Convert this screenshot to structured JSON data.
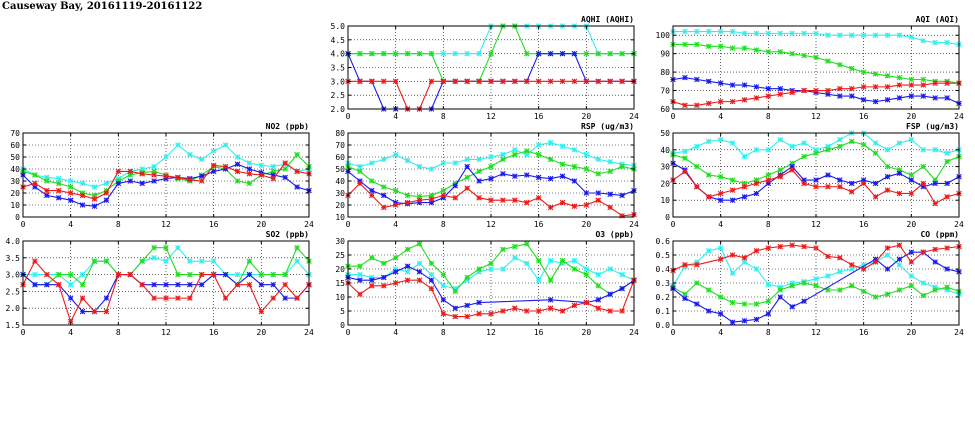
{
  "page_title": "Causeway Bay, 20161119-20161122",
  "colors": {
    "cyan": "#33eeee",
    "green": "#22dd22",
    "blue": "#1a1aee",
    "red": "#ee1a1a"
  },
  "chart_data": [
    {
      "id": "aqhi",
      "type": "line",
      "title": "AQHI (AQHI)",
      "xlim": [
        0,
        24
      ],
      "ylim": [
        2.0,
        5.0
      ],
      "grid": true,
      "x_ticks": [
        "0",
        "4",
        "8",
        "12",
        "16",
        "20",
        "24"
      ],
      "y_ticks": [
        "2.0",
        "2.5",
        "3.0",
        "3.5",
        "4.0",
        "4.5",
        "5.0"
      ],
      "series": [
        {
          "color": "cyan",
          "values": [
            4,
            4,
            4,
            4,
            4,
            4,
            4,
            4,
            4,
            4,
            4,
            4,
            5,
            5,
            5,
            5,
            5,
            5,
            5,
            5,
            5,
            4,
            4,
            4,
            4
          ]
        },
        {
          "color": "green",
          "values": [
            4,
            4,
            4,
            4,
            4,
            4,
            4,
            4,
            3,
            3,
            3,
            3,
            4,
            5,
            5,
            4,
            4,
            4,
            4,
            4,
            4,
            4,
            4,
            4,
            4
          ]
        },
        {
          "color": "blue",
          "values": [
            4,
            3,
            3,
            2,
            2,
            2,
            2,
            2,
            3,
            3,
            3,
            3,
            3,
            3,
            3,
            3,
            4,
            4,
            4,
            4,
            3,
            3,
            3,
            3,
            3
          ]
        },
        {
          "color": "red",
          "values": [
            3,
            3,
            3,
            3,
            3,
            2,
            2,
            3,
            3,
            3,
            3,
            3,
            3,
            3,
            3,
            3,
            3,
            3,
            3,
            3,
            3,
            3,
            3,
            3,
            3
          ]
        }
      ]
    },
    {
      "id": "aqi",
      "type": "line",
      "title": "AQI (AQI)",
      "xlim": [
        0,
        24
      ],
      "ylim": [
        60,
        105
      ],
      "grid": true,
      "x_ticks": [
        "0",
        "4",
        "8",
        "12",
        "16",
        "20",
        "24"
      ],
      "y_ticks": [
        "60",
        "70",
        "80",
        "90",
        "100"
      ],
      "series": [
        {
          "color": "cyan",
          "values": [
            102,
            102,
            102,
            102,
            102,
            102,
            101,
            101,
            101,
            101,
            101,
            101,
            101,
            100,
            100,
            100,
            100,
            100,
            100,
            100,
            99,
            97,
            96,
            96,
            95
          ]
        },
        {
          "color": "green",
          "values": [
            95,
            95,
            95,
            94,
            94,
            93,
            93,
            92,
            91,
            91,
            90,
            89,
            88,
            86,
            84,
            82,
            80,
            79,
            78,
            77,
            76,
            76,
            75,
            75,
            74
          ]
        },
        {
          "color": "blue",
          "values": [
            76,
            77,
            76,
            75,
            74,
            73,
            73,
            72,
            71,
            71,
            70,
            70,
            69,
            68,
            67,
            67,
            65,
            64,
            65,
            66,
            67,
            67,
            66,
            66,
            63
          ]
        },
        {
          "color": "red",
          "values": [
            64,
            62,
            62,
            63,
            64,
            64,
            65,
            66,
            67,
            68,
            69,
            70,
            70,
            70,
            71,
            71,
            72,
            72,
            72,
            73,
            73,
            73,
            74,
            74,
            74
          ]
        }
      ]
    },
    {
      "id": "no2",
      "type": "line",
      "title": "NO2 (ppb)",
      "xlim": [
        0,
        24
      ],
      "ylim": [
        0,
        70
      ],
      "grid": true,
      "x_ticks": [
        "0",
        "4",
        "8",
        "12",
        "16",
        "20",
        "24"
      ],
      "y_ticks": [
        "0",
        "10",
        "20",
        "30",
        "40",
        "50",
        "60",
        "70"
      ],
      "series": [
        {
          "color": "cyan",
          "values": [
            40,
            35,
            33,
            32,
            30,
            28,
            25,
            28,
            32,
            38,
            40,
            42,
            50,
            60,
            52,
            48,
            55,
            60,
            50,
            45,
            43,
            42,
            44,
            38,
            40
          ]
        },
        {
          "color": "green",
          "values": [
            38,
            35,
            30,
            28,
            25,
            20,
            18,
            22,
            30,
            35,
            37,
            38,
            35,
            32,
            30,
            35,
            42,
            40,
            30,
            28,
            35,
            38,
            40,
            52,
            42
          ]
        },
        {
          "color": "blue",
          "values": [
            35,
            25,
            18,
            16,
            14,
            10,
            9,
            14,
            28,
            30,
            28,
            30,
            32,
            33,
            32,
            34,
            38,
            40,
            44,
            40,
            37,
            35,
            33,
            25,
            22
          ]
        },
        {
          "color": "red",
          "values": [
            25,
            28,
            22,
            22,
            20,
            18,
            15,
            20,
            38,
            38,
            36,
            35,
            34,
            33,
            31,
            30,
            43,
            42,
            38,
            36,
            35,
            32,
            45,
            38,
            36
          ]
        }
      ]
    },
    {
      "id": "rsp",
      "type": "line",
      "title": "RSP (ug/m3)",
      "xlim": [
        0,
        24
      ],
      "ylim": [
        10,
        80
      ],
      "grid": true,
      "x_ticks": [
        "0",
        "4",
        "8",
        "12",
        "16",
        "20",
        "24"
      ],
      "y_ticks": [
        "10",
        "20",
        "30",
        "40",
        "50",
        "60",
        "70",
        "80"
      ],
      "series": [
        {
          "color": "cyan",
          "values": [
            55,
            52,
            55,
            58,
            62,
            57,
            52,
            50,
            55,
            55,
            58,
            58,
            60,
            62,
            66,
            62,
            70,
            72,
            69,
            66,
            62,
            58,
            56,
            54,
            53
          ]
        },
        {
          "color": "green",
          "values": [
            52,
            48,
            40,
            35,
            32,
            28,
            27,
            28,
            32,
            38,
            43,
            48,
            52,
            58,
            62,
            65,
            62,
            58,
            54,
            52,
            50,
            46,
            48,
            52,
            50
          ]
        },
        {
          "color": "blue",
          "values": [
            48,
            40,
            32,
            28,
            22,
            21,
            22,
            22,
            26,
            36,
            52,
            40,
            42,
            46,
            44,
            45,
            43,
            42,
            44,
            40,
            30,
            30,
            29,
            28,
            32
          ]
        },
        {
          "color": "red",
          "values": [
            28,
            38,
            28,
            18,
            20,
            22,
            24,
            25,
            28,
            26,
            34,
            26,
            24,
            24,
            24,
            22,
            26,
            18,
            22,
            19,
            20,
            24,
            18,
            11,
            12
          ]
        }
      ]
    },
    {
      "id": "fsp",
      "type": "line",
      "title": "FSP (ug/m3)",
      "xlim": [
        0,
        24
      ],
      "ylim": [
        0,
        50
      ],
      "grid": true,
      "x_ticks": [
        "0",
        "4",
        "8",
        "12",
        "16",
        "20",
        "24"
      ],
      "y_ticks": [
        "0",
        "10",
        "20",
        "30",
        "40",
        "50"
      ],
      "series": [
        {
          "color": "cyan",
          "values": [
            38,
            39,
            42,
            45,
            46,
            44,
            36,
            40,
            40,
            46,
            42,
            44,
            40,
            42,
            46,
            50,
            50,
            44,
            40,
            44,
            46,
            40,
            40,
            38,
            40
          ]
        },
        {
          "color": "green",
          "values": [
            37,
            35,
            30,
            25,
            24,
            22,
            20,
            22,
            25,
            28,
            32,
            36,
            38,
            40,
            42,
            45,
            43,
            38,
            30,
            28,
            25,
            30,
            22,
            33,
            36
          ]
        },
        {
          "color": "blue",
          "values": [
            32,
            28,
            18,
            12,
            10,
            10,
            12,
            14,
            20,
            25,
            30,
            22,
            22,
            25,
            22,
            20,
            22,
            20,
            24,
            26,
            22,
            18,
            20,
            20,
            24
          ]
        },
        {
          "color": "red",
          "values": [
            22,
            27,
            18,
            12,
            14,
            16,
            18,
            20,
            22,
            24,
            28,
            20,
            18,
            18,
            18,
            15,
            20,
            12,
            16,
            14,
            14,
            20,
            8,
            12,
            14
          ]
        }
      ]
    },
    {
      "id": "so2",
      "type": "line",
      "title": "SO2 (ppb)",
      "xlim": [
        0,
        24
      ],
      "ylim": [
        1.5,
        4.0
      ],
      "grid": true,
      "x_ticks": [
        "0",
        "4",
        "8",
        "12",
        "16",
        "20",
        "24"
      ],
      "y_ticks": [
        "1.5",
        "2.0",
        "2.5",
        "3.0",
        "3.5",
        "4.0"
      ],
      "series": [
        {
          "color": "cyan",
          "values": [
            3.0,
            3.0,
            3.0,
            3.0,
            2.7,
            3.0,
            3.4,
            3.4,
            3.0,
            3.0,
            3.4,
            3.5,
            3.4,
            3.8,
            3.4,
            3.4,
            3.4,
            3.0,
            3.0,
            3.0,
            3.0,
            3.0,
            3.0,
            3.4,
            3.0
          ]
        },
        {
          "color": "green",
          "values": [
            3.0,
            2.7,
            2.7,
            3.0,
            3.0,
            2.7,
            3.4,
            3.4,
            3.0,
            3.0,
            3.4,
            3.8,
            3.8,
            3.0,
            3.0,
            3.0,
            3.0,
            3.0,
            2.7,
            3.4,
            3.0,
            3.0,
            3.0,
            3.8,
            3.4
          ]
        },
        {
          "color": "blue",
          "values": [
            3.0,
            2.7,
            2.7,
            2.7,
            2.3,
            1.9,
            1.9,
            2.3,
            3.0,
            3.0,
            2.7,
            2.7,
            2.7,
            2.7,
            2.7,
            2.7,
            3.0,
            3.0,
            2.7,
            3.0,
            2.7,
            2.7,
            2.3,
            2.3,
            2.7
          ]
        },
        {
          "color": "red",
          "values": [
            2.7,
            3.4,
            3.0,
            2.7,
            1.6,
            2.3,
            1.9,
            1.9,
            3.0,
            3.0,
            2.7,
            2.3,
            2.3,
            2.3,
            2.3,
            3.0,
            3.0,
            2.3,
            2.7,
            2.7,
            1.9,
            2.3,
            2.7,
            2.3,
            2.7
          ]
        }
      ]
    },
    {
      "id": "o3",
      "type": "line",
      "title": "O3 (ppb)",
      "xlim": [
        0,
        24
      ],
      "ylim": [
        0,
        30
      ],
      "grid": true,
      "x_ticks": [
        "0",
        "4",
        "8",
        "12",
        "16",
        "20",
        "24"
      ],
      "y_ticks": [
        "0",
        "5",
        "10",
        "15",
        "20",
        "25",
        "30"
      ],
      "series": [
        {
          "color": "cyan",
          "values": [
            18,
            18,
            17,
            17,
            20,
            19,
            22,
            18,
            14,
            13,
            16,
            19,
            20,
            20,
            24,
            22,
            16,
            23,
            22,
            23,
            20,
            18,
            20,
            18,
            16
          ]
        },
        {
          "color": "green",
          "values": [
            21,
            21,
            24,
            22,
            24,
            27,
            29,
            22,
            18,
            12,
            17,
            20,
            22,
            27,
            28,
            29,
            23,
            16,
            23,
            20,
            18,
            14,
            11,
            13,
            16
          ]
        },
        {
          "color": "blue",
          "values": [
            17,
            16,
            16,
            17,
            19,
            21,
            19,
            16,
            9,
            6,
            7,
            8,
            null,
            null,
            null,
            null,
            null,
            9,
            null,
            null,
            8,
            9,
            11,
            13,
            16
          ]
        },
        {
          "color": "red",
          "values": [
            15,
            11,
            14,
            14,
            15,
            16,
            16,
            13,
            4,
            3,
            3,
            4,
            4,
            5,
            6,
            5,
            5,
            6,
            5,
            7,
            8,
            6,
            5,
            5,
            16
          ]
        }
      ]
    },
    {
      "id": "co",
      "type": "line",
      "title": "CO (ppm)",
      "xlim": [
        0,
        24
      ],
      "ylim": [
        0.0,
        0.6
      ],
      "grid": true,
      "x_ticks": [
        "0",
        "4",
        "8",
        "12",
        "16",
        "20",
        "24"
      ],
      "y_ticks": [
        "0.0",
        "0.1",
        "0.2",
        "0.3",
        "0.4",
        "0.5",
        "0.6"
      ],
      "series": [
        {
          "color": "cyan",
          "values": [
            0.28,
            0.42,
            0.45,
            0.53,
            0.55,
            0.37,
            0.45,
            0.4,
            0.29,
            0.27,
            0.3,
            0.31,
            0.33,
            0.35,
            0.38,
            0.4,
            0.43,
            0.45,
            0.5,
            0.43,
            0.35,
            0.3,
            0.27,
            0.25,
            0.22
          ]
        },
        {
          "color": "green",
          "values": [
            0.27,
            0.22,
            0.3,
            0.25,
            0.2,
            0.16,
            0.15,
            0.15,
            0.17,
            0.25,
            0.28,
            0.3,
            0.28,
            0.25,
            0.25,
            0.28,
            0.24,
            0.2,
            0.22,
            0.25,
            0.28,
            0.21,
            0.25,
            0.27,
            0.24
          ]
        },
        {
          "color": "blue",
          "values": [
            0.26,
            0.19,
            0.15,
            0.1,
            0.08,
            0.02,
            0.03,
            0.04,
            0.08,
            0.2,
            0.13,
            0.17,
            null,
            null,
            null,
            null,
            null,
            0.47,
            0.4,
            0.47,
            0.52,
            0.52,
            0.45,
            0.4,
            0.38
          ]
        },
        {
          "color": "red",
          "values": [
            0.39,
            0.43,
            0.43,
            null,
            0.47,
            0.5,
            0.48,
            0.53,
            0.55,
            0.56,
            0.57,
            0.56,
            0.55,
            0.49,
            0.48,
            0.43,
            0.4,
            0.45,
            0.55,
            0.57,
            0.45,
            0.52,
            0.54,
            0.55,
            0.56
          ]
        }
      ]
    }
  ]
}
